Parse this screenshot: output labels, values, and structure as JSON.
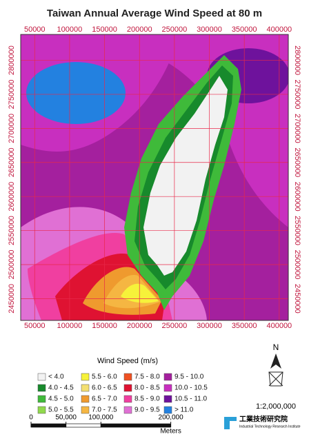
{
  "title": "Taiwan Annual Average Wind Speed at 80 m",
  "map": {
    "xlim": [
      30000,
      413000
    ],
    "ylim": [
      2418000,
      2838000
    ],
    "xticks": [
      50000,
      100000,
      150000,
      200000,
      250000,
      300000,
      350000,
      400000
    ],
    "yticks": [
      2450000,
      2500000,
      2550000,
      2600000,
      2650000,
      2700000,
      2750000,
      2800000
    ],
    "grid": true
  },
  "legend": {
    "title": "Wind Speed (m/s)",
    "items": [
      {
        "label": "< 4.0",
        "color": "#f2f2f2"
      },
      {
        "label": "4.0 - 4.5",
        "color": "#178a2c"
      },
      {
        "label": "4.5 - 5.0",
        "color": "#3fba3a"
      },
      {
        "label": "5.0 - 5.5",
        "color": "#90d94c"
      },
      {
        "label": "5.5 - 6.0",
        "color": "#f6f23a"
      },
      {
        "label": "6.0 - 6.5",
        "color": "#f3df72"
      },
      {
        "label": "6.5 - 7.0",
        "color": "#ef9a2e"
      },
      {
        "label": "7.0 - 7.5",
        "color": "#f5b642"
      },
      {
        "label": "7.5 - 8.0",
        "color": "#ef5122"
      },
      {
        "label": "8.0 - 8.5",
        "color": "#df1232"
      },
      {
        "label": "8.5 - 9.0",
        "color": "#f03fa0"
      },
      {
        "label": "9.0 - 9.5",
        "color": "#e070d4"
      },
      {
        "label": "9.5 - 10.0",
        "color": "#a4209e"
      },
      {
        "label": "10.0 - 10.5",
        "color": "#c82fbf"
      },
      {
        "label": "10.5 - 11.0",
        "color": "#6e129c"
      },
      {
        "label": "> 11.0",
        "color": "#2381e0"
      }
    ]
  },
  "scale": "1:2,000,000",
  "scale_bar": {
    "ticks": [
      0,
      {
        "value": 50000,
        "label": "50,000"
      },
      {
        "value": 100000,
        "label": "100,000"
      },
      {
        "value": 200000,
        "label": "200,000"
      }
    ],
    "unit": "Meters"
  },
  "north": "N",
  "logo": {
    "name": "工業技術研究院",
    "english": "Industrial Technology Research Institute"
  }
}
